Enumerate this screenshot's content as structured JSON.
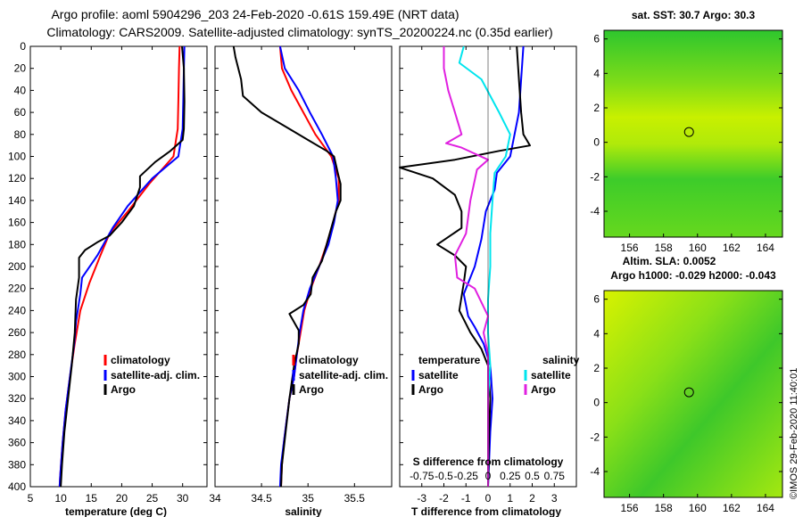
{
  "header": {
    "line1": "Argo profile: aoml 5904296_203 24-Feb-2020 -0.61S 159.49E (NRT data)",
    "line2": "Climatology: CARS2009. Satellite-adjusted climatology: synTS_20200224.nc (0.35d earlier)"
  },
  "colors": {
    "climatology": "#ff0000",
    "satellite": "#0000ff",
    "argo": "#000000",
    "sat_salinity": "#00e5ee",
    "argo_salinity": "#e020e0"
  },
  "depth_ticks": [
    "0",
    "20",
    "40",
    "60",
    "80",
    "100",
    "120",
    "140",
    "160",
    "180",
    "200",
    "220",
    "240",
    "260",
    "280",
    "300",
    "320",
    "340",
    "360",
    "380",
    "400"
  ],
  "chart_data": [
    {
      "type": "line",
      "panel": "temperature",
      "xlabel": "temperature (deg C)",
      "xticks": [
        "5",
        "10",
        "15",
        "20",
        "25",
        "30"
      ],
      "xlim": [
        5,
        34
      ],
      "ylim": [
        0,
        400
      ],
      "legend": [
        "climatology",
        "satellite-adj. clim.",
        "Argo"
      ],
      "series": [
        {
          "name": "climatology",
          "color": "#ff0000",
          "points": [
            [
              29.5,
              0
            ],
            [
              29.4,
              20
            ],
            [
              29.3,
              50
            ],
            [
              29.2,
              75
            ],
            [
              28.5,
              100
            ],
            [
              24.5,
              125
            ],
            [
              21,
              150
            ],
            [
              18,
              170
            ],
            [
              16.5,
              190
            ],
            [
              14.7,
              215
            ],
            [
              13.2,
              240
            ],
            [
              12.3,
              270
            ],
            [
              11.5,
              300
            ],
            [
              10.8,
              330
            ],
            [
              10.3,
              360
            ],
            [
              9.9,
              390
            ],
            [
              9.8,
              400
            ]
          ]
        },
        {
          "name": "satellite-adj. clim.",
          "color": "#0000ff",
          "points": [
            [
              30.3,
              0
            ],
            [
              30.2,
              20
            ],
            [
              30.1,
              50
            ],
            [
              30,
              75
            ],
            [
              29.3,
              100
            ],
            [
              25,
              120
            ],
            [
              21,
              145
            ],
            [
              18.5,
              165
            ],
            [
              16,
              190
            ],
            [
              13.5,
              210
            ],
            [
              13.2,
              225
            ],
            [
              12.5,
              250
            ],
            [
              12.2,
              270
            ],
            [
              11.5,
              300
            ],
            [
              10.8,
              330
            ],
            [
              10.3,
              360
            ],
            [
              9.9,
              390
            ],
            [
              9.8,
              400
            ]
          ]
        },
        {
          "name": "Argo",
          "color": "#000000",
          "points": [
            [
              29.9,
              0
            ],
            [
              30.2,
              20
            ],
            [
              30.3,
              50
            ],
            [
              30.2,
              75
            ],
            [
              30,
              85
            ],
            [
              28,
              95
            ],
            [
              25.5,
              105
            ],
            [
              23,
              118
            ],
            [
              23,
              128
            ],
            [
              22,
              145
            ],
            [
              20,
              160
            ],
            [
              18,
              172
            ],
            [
              16,
              178
            ],
            [
              14,
              185
            ],
            [
              13,
              192
            ],
            [
              13,
              200
            ],
            [
              13,
              210
            ],
            [
              12.5,
              230
            ],
            [
              12.3,
              260
            ],
            [
              11.8,
              290
            ],
            [
              11.2,
              320
            ],
            [
              10.6,
              350
            ],
            [
              10.2,
              380
            ],
            [
              10,
              400
            ]
          ]
        }
      ]
    },
    {
      "type": "line",
      "panel": "salinity",
      "xlabel": "salinity",
      "xticks": [
        "34",
        "34.5",
        "35",
        "35.5"
      ],
      "xlim": [
        34,
        35.9
      ],
      "ylim": [
        0,
        400
      ],
      "legend": [
        "climatology",
        "satellite-adj. clim.",
        "Argo"
      ],
      "series": [
        {
          "name": "climatology",
          "color": "#ff0000",
          "points": [
            [
              34.7,
              0
            ],
            [
              34.72,
              20
            ],
            [
              34.82,
              40
            ],
            [
              34.95,
              60
            ],
            [
              35.08,
              80
            ],
            [
              35.25,
              100
            ],
            [
              35.33,
              120
            ],
            [
              35.33,
              140
            ],
            [
              35.27,
              160
            ],
            [
              35.2,
              180
            ],
            [
              35.12,
              200
            ],
            [
              35.03,
              220
            ],
            [
              34.96,
              240
            ],
            [
              34.92,
              260
            ],
            [
              34.88,
              280
            ],
            [
              34.85,
              300
            ],
            [
              34.8,
              320
            ],
            [
              34.77,
              340
            ],
            [
              34.74,
              360
            ],
            [
              34.72,
              380
            ],
            [
              34.71,
              400
            ]
          ]
        },
        {
          "name": "satellite-adj. clim.",
          "color": "#0000ff",
          "points": [
            [
              34.7,
              0
            ],
            [
              34.75,
              20
            ],
            [
              34.9,
              40
            ],
            [
              35.02,
              60
            ],
            [
              35.15,
              80
            ],
            [
              35.27,
              100
            ],
            [
              35.3,
              120
            ],
            [
              35.32,
              140
            ],
            [
              35.28,
              160
            ],
            [
              35.22,
              180
            ],
            [
              35.12,
              200
            ],
            [
              35.02,
              220
            ],
            [
              34.95,
              240
            ],
            [
              34.91,
              260
            ],
            [
              34.88,
              280
            ],
            [
              34.85,
              300
            ],
            [
              34.8,
              320
            ],
            [
              34.77,
              340
            ],
            [
              34.74,
              360
            ],
            [
              34.71,
              380
            ],
            [
              34.7,
              400
            ]
          ]
        },
        {
          "name": "Argo",
          "color": "#000000",
          "points": [
            [
              34.2,
              0
            ],
            [
              34.22,
              10
            ],
            [
              34.28,
              30
            ],
            [
              34.3,
              45
            ],
            [
              34.5,
              60
            ],
            [
              34.8,
              75
            ],
            [
              35,
              85
            ],
            [
              35.2,
              95
            ],
            [
              35.28,
              100
            ],
            [
              35.32,
              115
            ],
            [
              35.35,
              125
            ],
            [
              35.35,
              140
            ],
            [
              35.3,
              150
            ],
            [
              35.25,
              165
            ],
            [
              35.2,
              180
            ],
            [
              35.15,
              195
            ],
            [
              35.05,
              210
            ],
            [
              35.03,
              225
            ],
            [
              34.95,
              235
            ],
            [
              34.8,
              243
            ],
            [
              34.9,
              258
            ],
            [
              34.9,
              270
            ],
            [
              34.85,
              290
            ],
            [
              34.8,
              320
            ],
            [
              34.76,
              350
            ],
            [
              34.72,
              380
            ],
            [
              34.71,
              400
            ]
          ]
        }
      ]
    },
    {
      "type": "line",
      "panel": "difference",
      "xlabel": "T difference from climatology",
      "top_label": "S difference from climatology",
      "xticks": [
        "-3",
        "-2",
        "-1",
        "0",
        "1",
        "2",
        "3"
      ],
      "top_ticks": [
        "-0.75",
        "-0.5",
        "-0.25",
        "0",
        "0.25",
        "0.5",
        "0.75"
      ],
      "xlim": [
        -4,
        4
      ],
      "ylim": [
        0,
        400
      ],
      "legend_temperature": {
        "heading": "temperature",
        "items": [
          "satellite",
          "Argo"
        ]
      },
      "legend_salinity": {
        "heading": "salinity",
        "items": [
          "satellite",
          "Argo"
        ]
      },
      "series": [
        {
          "name": "temperature satellite",
          "color": "#0000ff",
          "points": [
            [
              1.6,
              0
            ],
            [
              1.5,
              30
            ],
            [
              1.4,
              60
            ],
            [
              1.2,
              80
            ],
            [
              1.0,
              100
            ],
            [
              0.4,
              115
            ],
            [
              0.3,
              130
            ],
            [
              -0.1,
              150
            ],
            [
              -0.3,
              175
            ],
            [
              -0.6,
              200
            ],
            [
              -1.1,
              225
            ],
            [
              -0.9,
              245
            ],
            [
              -0.6,
              255
            ],
            [
              -0.2,
              270
            ],
            [
              0.1,
              290
            ],
            [
              0.2,
              320
            ],
            [
              0.1,
              350
            ],
            [
              0,
              400
            ]
          ]
        },
        {
          "name": "temperature Argo",
          "color": "#000000",
          "points": [
            [
              1.3,
              0
            ],
            [
              1.4,
              30
            ],
            [
              1.5,
              60
            ],
            [
              1.6,
              80
            ],
            [
              1.9,
              90
            ],
            [
              0.5,
              95
            ],
            [
              -1.5,
              103
            ],
            [
              -4,
              110
            ],
            [
              -2.5,
              120
            ],
            [
              -1.5,
              135
            ],
            [
              -1.2,
              150
            ],
            [
              -1.2,
              165
            ],
            [
              -2.3,
              180
            ],
            [
              -1.5,
              190
            ],
            [
              -1.0,
              200
            ],
            [
              -1.1,
              215
            ],
            [
              -1.3,
              240
            ],
            [
              -0.8,
              260
            ],
            [
              -0.3,
              275
            ],
            [
              0,
              290
            ],
            [
              0.1,
              320
            ],
            [
              0.05,
              350
            ],
            [
              0,
              400
            ]
          ]
        },
        {
          "name": "salinity satellite",
          "color": "#00e5ee",
          "points": [
            [
              -1.1,
              0
            ],
            [
              -1.3,
              15
            ],
            [
              -0.3,
              30
            ],
            [
              0.5,
              60
            ],
            [
              1.0,
              80
            ],
            [
              0.8,
              100
            ],
            [
              0.3,
              115
            ],
            [
              0.2,
              140
            ],
            [
              0.1,
              170
            ],
            [
              0.1,
              200
            ],
            [
              0,
              230
            ],
            [
              0,
              260
            ],
            [
              0.1,
              290
            ],
            [
              0,
              320
            ],
            [
              0,
              360
            ],
            [
              0,
              400
            ]
          ]
        },
        {
          "name": "salinity Argo",
          "color": "#e020e0",
          "points": [
            [
              -2.0,
              0
            ],
            [
              -2.0,
              20
            ],
            [
              -1.8,
              40
            ],
            [
              -1.5,
              60
            ],
            [
              -1.2,
              80
            ],
            [
              -1.9,
              88
            ],
            [
              -1.2,
              92
            ],
            [
              0,
              103
            ],
            [
              -0.5,
              112
            ],
            [
              -0.8,
              140
            ],
            [
              -1.0,
              170
            ],
            [
              -1.5,
              190
            ],
            [
              -1.4,
              210
            ],
            [
              -0.6,
              220
            ],
            [
              0,
              245
            ],
            [
              -0.2,
              260
            ],
            [
              0,
              280
            ],
            [
              0,
              320
            ],
            [
              0,
              360
            ],
            [
              0,
              400
            ]
          ]
        }
      ]
    },
    {
      "type": "heatmap",
      "panel": "sst_map",
      "title": "sat. SST: 30.7 Argo: 30.3",
      "xticks": [
        "156",
        "158",
        "160",
        "162",
        "164"
      ],
      "yticks": [
        "6",
        "4",
        "2",
        "0",
        "-2",
        "-4"
      ],
      "xlim": [
        154.5,
        165
      ],
      "ylim": [
        -5.5,
        6.5
      ],
      "marker": [
        159.5,
        0.6
      ]
    },
    {
      "type": "heatmap",
      "panel": "sla_map",
      "title_line1": "Altim. SLA: 0.0052",
      "title_line2": "Argo h1000: -0.029 h2000: -0.043",
      "xticks": [
        "156",
        "158",
        "160",
        "162",
        "164"
      ],
      "yticks": [
        "6",
        "4",
        "2",
        "0",
        "-2",
        "-4"
      ],
      "xlim": [
        154.5,
        165
      ],
      "ylim": [
        -5.5,
        6.5
      ],
      "marker": [
        159.5,
        0.6
      ]
    }
  ],
  "footer": {
    "credit": "©IMOS 29-Feb-2020 11:40:01"
  }
}
